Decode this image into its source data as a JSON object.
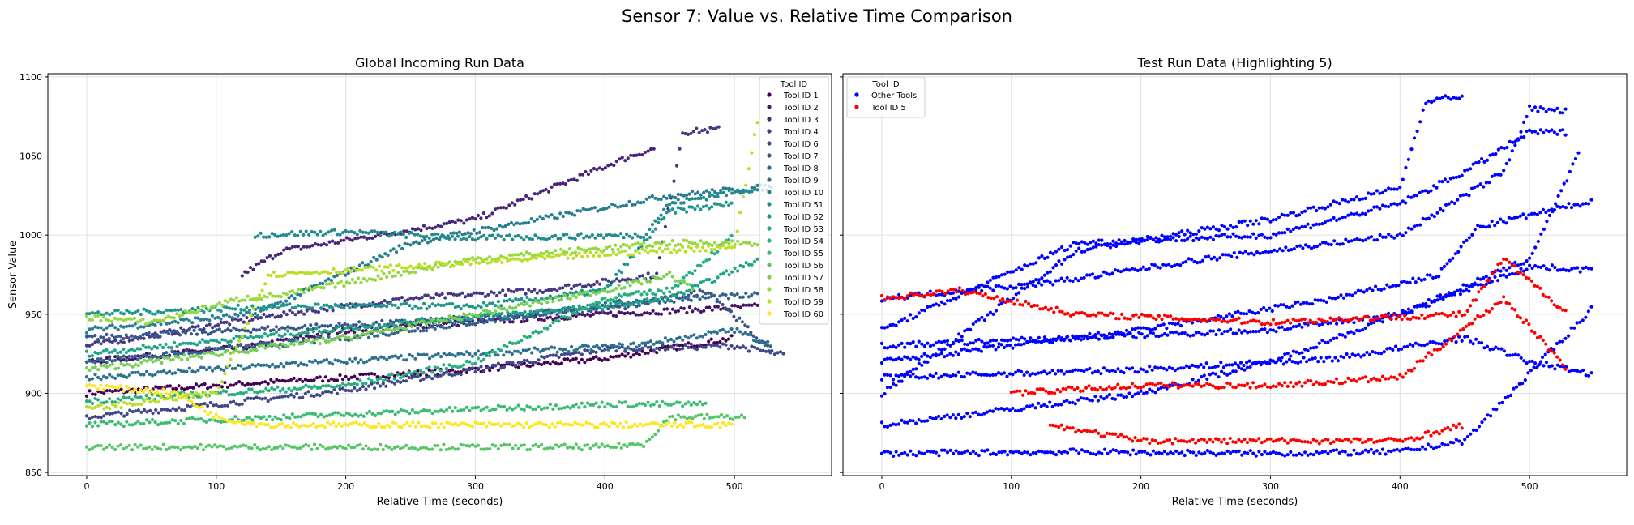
{
  "title": "Sensor 7: Value vs. Relative Time Comparison",
  "chart_data": [
    {
      "type": "scatter",
      "title": "Global Incoming Run Data",
      "xlabel": "Relative Time (seconds)",
      "ylabel": "Sensor Value",
      "xlim": [
        -30,
        575
      ],
      "ylim": [
        848,
        1102
      ],
      "xticks": [
        0,
        100,
        200,
        300,
        400,
        500
      ],
      "yticks": [
        850,
        900,
        950,
        1000,
        1050,
        1100
      ],
      "grid": true,
      "legend": {
        "title": "Tool ID",
        "placement": "top-right",
        "entries": [
          {
            "label": "Tool ID 1",
            "color": "#440154"
          },
          {
            "label": "Tool ID 2",
            "color": "#481467"
          },
          {
            "label": "Tool ID 3",
            "color": "#482576"
          },
          {
            "label": "Tool ID 4",
            "color": "#453781"
          },
          {
            "label": "Tool ID 6",
            "color": "#3f4788"
          },
          {
            "label": "Tool ID 7",
            "color": "#39558c"
          },
          {
            "label": "Tool ID 8",
            "color": "#32648e"
          },
          {
            "label": "Tool ID 9",
            "color": "#2d718e"
          },
          {
            "label": "Tool ID 10",
            "color": "#287d8e"
          },
          {
            "label": "Tool ID 51",
            "color": "#238a8d"
          },
          {
            "label": "Tool ID 52",
            "color": "#1f968b"
          },
          {
            "label": "Tool ID 53",
            "color": "#20a386"
          },
          {
            "label": "Tool ID 54",
            "color": "#29af7f"
          },
          {
            "label": "Tool ID 55",
            "color": "#3dbc74"
          },
          {
            "label": "Tool ID 56",
            "color": "#56c667"
          },
          {
            "label": "Tool ID 57",
            "color": "#75d054"
          },
          {
            "label": "Tool ID 58",
            "color": "#95d840"
          },
          {
            "label": "Tool ID 59",
            "color": "#bade28"
          },
          {
            "label": "Tool ID 60",
            "color": "#fde725"
          }
        ]
      },
      "series": [
        {
          "name": "Tool ID 1",
          "color": "#440154",
          "points": [
            [
              0,
              900
            ],
            [
              100,
              905
            ],
            [
              200,
              910
            ],
            [
              300,
              915
            ],
            [
              400,
              922
            ],
            [
              500,
              935
            ]
          ]
        },
        {
          "name": "Tool ID 2",
          "color": "#481467",
          "points": [
            [
              0,
              920
            ],
            [
              130,
              930
            ],
            [
              200,
              940
            ],
            [
              300,
              945
            ],
            [
              400,
              950
            ],
            [
              520,
              955
            ]
          ]
        },
        {
          "name": "Tool ID 3",
          "color": "#482576",
          "points": [
            [
              120,
              975
            ],
            [
              150,
              990
            ],
            [
              300,
              1010
            ],
            [
              420,
              1050
            ],
            [
              440,
              1055
            ]
          ]
        },
        {
          "name": "Tool ID 4",
          "color": "#453781",
          "points": [
            [
              0,
              930
            ],
            [
              150,
              950
            ],
            [
              250,
              960
            ],
            [
              350,
              965
            ],
            [
              440,
              975
            ],
            [
              460,
              1065
            ],
            [
              490,
              1067
            ]
          ]
        },
        {
          "name": "Tool ID 6",
          "color": "#3f4788",
          "points": [
            [
              0,
              885
            ],
            [
              100,
              893
            ],
            [
              200,
              902
            ],
            [
              300,
              915
            ],
            [
              400,
              928
            ],
            [
              500,
              930
            ],
            [
              540,
              924
            ]
          ]
        },
        {
          "name": "Tool ID 7",
          "color": "#39558c",
          "points": [
            [
              0,
              935
            ],
            [
              120,
              940
            ],
            [
              250,
              945
            ],
            [
              350,
              950
            ],
            [
              420,
              955
            ],
            [
              480,
              965
            ],
            [
              530,
              925
            ]
          ]
        },
        {
          "name": "Tool ID 8",
          "color": "#32648e",
          "points": [
            [
              0,
              920
            ],
            [
              200,
              935
            ],
            [
              300,
              945
            ],
            [
              420,
              958
            ],
            [
              520,
              962
            ]
          ]
        },
        {
          "name": "Tool ID 9",
          "color": "#2d718e",
          "points": [
            [
              0,
              910
            ],
            [
              150,
              918
            ],
            [
              300,
              925
            ],
            [
              420,
              930
            ],
            [
              500,
              940
            ],
            [
              530,
              930
            ]
          ]
        },
        {
          "name": "Tool ID 10",
          "color": "#287d8e",
          "points": [
            [
              0,
              940
            ],
            [
              130,
              950
            ],
            [
              250,
              995
            ],
            [
              350,
              1010
            ],
            [
              450,
              1025
            ],
            [
              520,
              1030
            ],
            [
              530,
              1030
            ]
          ]
        },
        {
          "name": "Tool ID 51",
          "color": "#238a8d",
          "points": [
            [
              130,
              1000
            ],
            [
              200,
              1002
            ],
            [
              300,
              998
            ],
            [
              430,
              1000
            ],
            [
              450,
              1020
            ],
            [
              520,
              1030
            ]
          ]
        },
        {
          "name": "Tool ID 52",
          "color": "#1f968b",
          "points": [
            [
              0,
              950
            ],
            [
              150,
              955
            ],
            [
              300,
              955
            ],
            [
              400,
              965
            ],
            [
              450,
              1015
            ],
            [
              500,
              1020
            ]
          ]
        },
        {
          "name": "Tool ID 53",
          "color": "#20a386",
          "points": [
            [
              0,
              925
            ],
            [
              120,
              935
            ],
            [
              250,
              945
            ],
            [
              400,
              955
            ],
            [
              450,
              960
            ],
            [
              520,
              985
            ]
          ]
        },
        {
          "name": "Tool ID 54",
          "color": "#29af7f",
          "points": [
            [
              0,
              895
            ],
            [
              200,
              905
            ],
            [
              300,
              920
            ],
            [
              400,
              960
            ],
            [
              450,
              965
            ],
            [
              500,
              1000
            ]
          ]
        },
        {
          "name": "Tool ID 55",
          "color": "#3dbc74",
          "points": [
            [
              0,
              880
            ],
            [
              150,
              885
            ],
            [
              300,
              890
            ],
            [
              400,
              893
            ],
            [
              480,
              893
            ]
          ]
        },
        {
          "name": "Tool ID 56",
          "color": "#56c667",
          "points": [
            [
              0,
              866
            ],
            [
              200,
              866
            ],
            [
              300,
              866
            ],
            [
              400,
              866
            ],
            [
              430,
              868
            ],
            [
              450,
              885
            ],
            [
              510,
              885
            ]
          ]
        },
        {
          "name": "Tool ID 57",
          "color": "#75d054",
          "points": [
            [
              0,
              915
            ],
            [
              100,
              925
            ],
            [
              200,
              935
            ],
            [
              300,
              950
            ],
            [
              400,
              965
            ],
            [
              450,
              975
            ],
            [
              470,
              965
            ]
          ]
        },
        {
          "name": "Tool ID 58",
          "color": "#95d840",
          "points": [
            [
              0,
              948
            ],
            [
              50,
              945
            ],
            [
              120,
              960
            ],
            [
              150,
              962
            ],
            [
              300,
              985
            ],
            [
              450,
              995
            ],
            [
              520,
              995
            ]
          ]
        },
        {
          "name": "Tool ID 59",
          "color": "#bade28",
          "points": [
            [
              0,
              890
            ],
            [
              100,
              900
            ],
            [
              140,
              975
            ],
            [
              250,
              980
            ],
            [
              400,
              988
            ],
            [
              500,
              993
            ],
            [
              520,
              1082
            ]
          ]
        },
        {
          "name": "Tool ID 60",
          "color": "#fde725",
          "points": [
            [
              0,
              905
            ],
            [
              70,
              900
            ],
            [
              100,
              885
            ],
            [
              120,
              882
            ],
            [
              140,
              880
            ],
            [
              300,
              880
            ],
            [
              500,
              880
            ]
          ]
        }
      ]
    },
    {
      "type": "scatter",
      "title": "Test Run Data (Highlighting 5)",
      "xlabel": "Relative Time (seconds)",
      "xlim": [
        -30,
        575
      ],
      "ylim": [
        848,
        1102
      ],
      "xticks": [
        0,
        100,
        200,
        300,
        400,
        500
      ],
      "grid": true,
      "legend": {
        "title": "Tool ID",
        "placement": "top-left",
        "entries": [
          {
            "label": "Other Tools",
            "color": "#0000ff"
          },
          {
            "label": "Tool ID 5",
            "color": "#ff0000"
          }
        ]
      },
      "series": [
        {
          "name": "Other Tools",
          "color": "#0000ff",
          "points": [
            [
              0,
              862
            ],
            [
              150,
              863
            ],
            [
              300,
              862
            ],
            [
              400,
              863
            ],
            [
              450,
              870
            ],
            [
              550,
              955
            ]
          ]
        },
        {
          "name": "Other Tools",
          "color": "#0000ff",
          "points": [
            [
              0,
              900
            ],
            [
              150,
              990
            ],
            [
              300,
              1010
            ],
            [
              400,
              1030
            ],
            [
              420,
              1085
            ],
            [
              450,
              1088
            ]
          ]
        },
        {
          "name": "Other Tools",
          "color": "#0000ff",
          "points": [
            [
              0,
              940
            ],
            [
              150,
              995
            ],
            [
              300,
              1000
            ],
            [
              400,
              1020
            ],
            [
              450,
              1040
            ],
            [
              500,
              1065
            ],
            [
              530,
              1065
            ]
          ]
        },
        {
          "name": "Other Tools",
          "color": "#0000ff",
          "points": [
            [
              0,
              960
            ],
            [
              130,
              970
            ],
            [
              250,
              985
            ],
            [
              400,
              1000
            ],
            [
              480,
              1040
            ],
            [
              500,
              1080
            ],
            [
              530,
              1078
            ]
          ]
        },
        {
          "name": "Other Tools",
          "color": "#0000ff",
          "points": [
            [
              0,
              920
            ],
            [
              200,
              940
            ],
            [
              350,
              960
            ],
            [
              430,
              975
            ],
            [
              460,
              1005
            ],
            [
              550,
              1022
            ]
          ]
        },
        {
          "name": "Other Tools",
          "color": "#0000ff",
          "points": [
            [
              0,
              880
            ],
            [
              200,
              900
            ],
            [
              300,
              920
            ],
            [
              400,
              950
            ],
            [
              500,
              980
            ],
            [
              550,
              978
            ]
          ]
        },
        {
          "name": "Other Tools",
          "color": "#0000ff",
          "points": [
            [
              0,
              930
            ],
            [
              150,
              935
            ],
            [
              300,
              940
            ],
            [
              400,
              950
            ],
            [
              500,
              985
            ],
            [
              540,
              1055
            ]
          ]
        },
        {
          "name": "Other Tools",
          "color": "#0000ff",
          "points": [
            [
              0,
              910
            ],
            [
              200,
              915
            ],
            [
              350,
              922
            ],
            [
              450,
              935
            ],
            [
              500,
              920
            ],
            [
              550,
              912
            ]
          ]
        },
        {
          "name": "Red Tool ID 5",
          "color": "#ff0000",
          "points": [
            [
              0,
              960
            ],
            [
              60,
              965
            ],
            [
              120,
              955
            ],
            [
              150,
              950
            ],
            [
              300,
              945
            ],
            [
              450,
              950
            ],
            [
              480,
              985
            ],
            [
              530,
              950
            ]
          ]
        },
        {
          "name": "Red Tool ID 5",
          "color": "#ff0000",
          "points": [
            [
              130,
              880
            ],
            [
              200,
              870
            ],
            [
              300,
              870
            ],
            [
              400,
              870
            ],
            [
              450,
              880
            ]
          ]
        },
        {
          "name": "Red Tool ID 5",
          "color": "#ff0000",
          "points": [
            [
              100,
              900
            ],
            [
              200,
              905
            ],
            [
              300,
              905
            ],
            [
              400,
              910
            ],
            [
              480,
              960
            ],
            [
              530,
              915
            ]
          ]
        }
      ]
    }
  ]
}
